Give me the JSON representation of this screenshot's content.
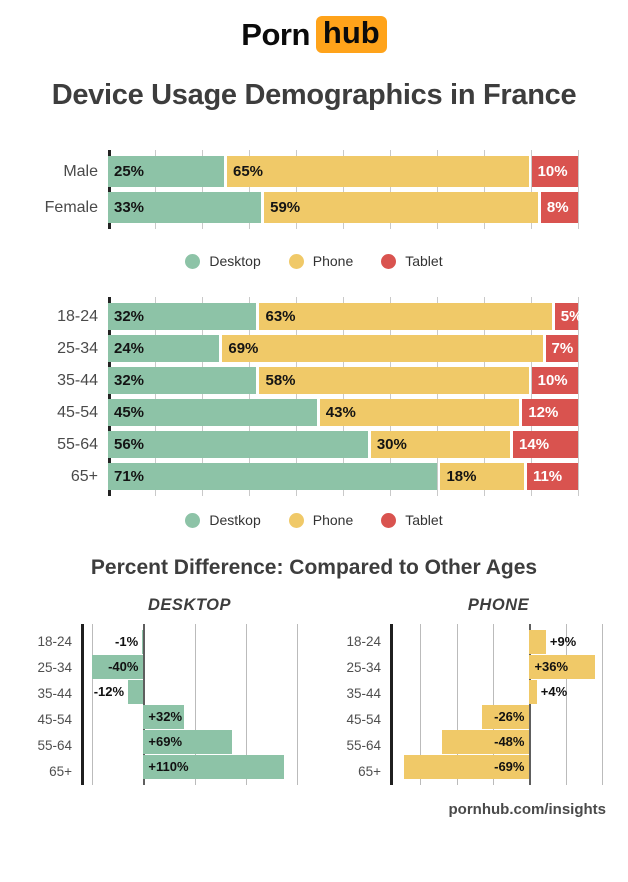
{
  "logo": {
    "part1": "Porn",
    "part2": "hub"
  },
  "title": "Device Usage Demographics in France",
  "section2_title": "Percent Difference: Compared to Other Ages",
  "footer": "pornhub.com/insights",
  "colors": {
    "desktop": "#8dc3a7",
    "phone": "#f0c968",
    "tablet": "#d9534f",
    "brand_orange": "#ffa31a",
    "heading_text": "#3d3d3d"
  },
  "chart_data": [
    {
      "type": "bar",
      "subtype": "stacked-horizontal",
      "title": "",
      "categories": [
        "Male",
        "Female"
      ],
      "series": [
        {
          "name": "Desktop",
          "color_key": "desktop",
          "values": [
            25,
            33
          ]
        },
        {
          "name": "Phone",
          "color_key": "phone",
          "values": [
            65,
            59
          ]
        },
        {
          "name": "Tablet",
          "color_key": "tablet",
          "values": [
            10,
            8
          ]
        }
      ],
      "legend": [
        "Desktop",
        "Phone",
        "Tablet"
      ],
      "legend_position": "bottom",
      "xlim": [
        0,
        100
      ],
      "gridline_step": 10,
      "grid": true
    },
    {
      "type": "bar",
      "subtype": "stacked-horizontal",
      "title": "",
      "categories": [
        "18-24",
        "25-34",
        "35-44",
        "45-54",
        "55-64",
        "65+"
      ],
      "series": [
        {
          "name": "Desktop",
          "color_key": "desktop",
          "values": [
            32,
            24,
            32,
            45,
            56,
            71
          ]
        },
        {
          "name": "Phone",
          "color_key": "phone",
          "values": [
            63,
            69,
            58,
            43,
            30,
            18
          ]
        },
        {
          "name": "Tablet",
          "color_key": "tablet",
          "values": [
            5,
            7,
            10,
            12,
            14,
            11
          ]
        }
      ],
      "legend": [
        "Destkop",
        "Phone",
        "Tablet"
      ],
      "legend_position": "bottom",
      "xlim": [
        0,
        100
      ],
      "gridline_step": 10,
      "grid": true
    },
    {
      "type": "bar",
      "subtype": "diverging-horizontal",
      "title": "DESKTOP",
      "categories": [
        "18-24",
        "25-34",
        "35-44",
        "45-54",
        "55-64",
        "65+"
      ],
      "values": [
        -1,
        -40,
        -12,
        32,
        69,
        110
      ],
      "labels": [
        "-1%",
        "-40%",
        "-12%",
        "+32%",
        "+69%",
        "+110%"
      ],
      "color_key": "desktop",
      "xlim": [
        -48,
        120
      ],
      "gridlines": [
        -40,
        0,
        40,
        80,
        120
      ],
      "grid": true
    },
    {
      "type": "bar",
      "subtype": "diverging-horizontal",
      "title": "PHONE",
      "categories": [
        "18-24",
        "25-34",
        "35-44",
        "45-54",
        "55-64",
        "65+"
      ],
      "values": [
        9,
        36,
        4,
        -26,
        -48,
        -69
      ],
      "labels": [
        "+9%",
        "+36%",
        "+4%",
        "-26%",
        "-48%",
        "-69%"
      ],
      "color_key": "phone",
      "xlim": [
        -76,
        42
      ],
      "gridlines": [
        -60,
        -40,
        -20,
        0,
        20,
        40
      ],
      "grid": true
    }
  ]
}
